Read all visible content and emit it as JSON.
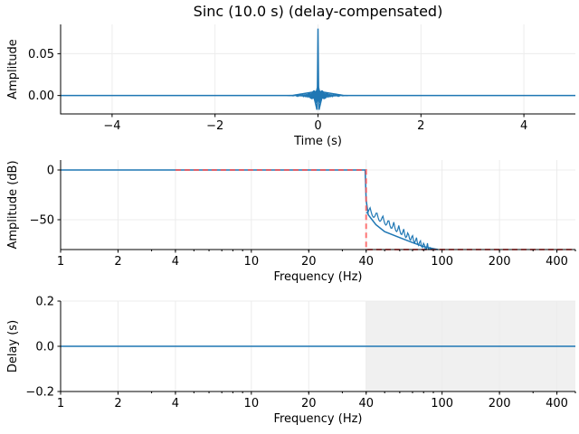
{
  "figure": {
    "title": "Sinc (10.0 s) (delay-compensated)",
    "colors": {
      "line": "#1f77b4",
      "ideal": "#ff5555",
      "grid": "#ececec",
      "shade": "#f0f0f0",
      "axis": "#000000"
    }
  },
  "chart_data": [
    {
      "type": "line",
      "title": "Sinc (10.0 s) (delay-compensated)",
      "xlabel": "Time (s)",
      "ylabel": "Amplitude",
      "xlim": [
        -5,
        5
      ],
      "ylim": [
        -0.022,
        0.085
      ],
      "xticks": [
        -4,
        -2,
        0,
        2,
        4
      ],
      "xtick_labels": [
        "−4",
        "−2",
        "0",
        "2",
        "4"
      ],
      "yticks": [
        0.0,
        0.05
      ],
      "ytick_labels": [
        "0.00",
        "0.05"
      ],
      "grid": true,
      "series": [
        {
          "name": "impulse response",
          "description": "sinc kernel centered at t=0, peak ~0.08, small ringing between ~-0.017 and ~0.012 near 0, otherwise 0",
          "x": [
            -5,
            -0.5,
            -0.1,
            -0.02,
            -0.01,
            0,
            0.01,
            0.02,
            0.1,
            0.5,
            5
          ],
          "y": [
            0,
            0,
            0.004,
            -0.017,
            0.012,
            0.08,
            0.012,
            -0.017,
            0.004,
            0,
            0
          ]
        }
      ]
    },
    {
      "type": "line",
      "xlabel": "Frequency (Hz)",
      "ylabel": "Amplitude (dB)",
      "xscale": "log",
      "xlim": [
        1,
        500
      ],
      "ylim": [
        -80,
        10
      ],
      "xticks": [
        1,
        2,
        4,
        10,
        20,
        40,
        100,
        200,
        400
      ],
      "xtick_labels": [
        "1",
        "2",
        "4",
        "10",
        "20",
        "40",
        "100",
        "200",
        "400"
      ],
      "yticks": [
        0,
        -50
      ],
      "ytick_labels": [
        "0",
        "−50"
      ],
      "grid": true,
      "series": [
        {
          "name": "actual response",
          "x": [
            1,
            39.5,
            40,
            41,
            45,
            50,
            60,
            70,
            80,
            95
          ],
          "y": [
            0,
            0,
            -30,
            -45,
            -55,
            -62,
            -68,
            -73,
            -77,
            -80
          ]
        },
        {
          "name": "ideal (dashed)",
          "style": "dashed",
          "x": [
            4,
            40,
            40,
            500
          ],
          "y": [
            0,
            0,
            -80,
            -80
          ]
        }
      ]
    },
    {
      "type": "line",
      "xlabel": "Frequency (Hz)",
      "ylabel": "Delay (s)",
      "xscale": "log",
      "xlim": [
        1,
        500
      ],
      "ylim": [
        -0.2,
        0.2
      ],
      "xticks": [
        1,
        2,
        4,
        10,
        20,
        40,
        100,
        200,
        400
      ],
      "xtick_labels": [
        "1",
        "2",
        "4",
        "10",
        "20",
        "40",
        "100",
        "200",
        "400"
      ],
      "yticks": [
        -0.2,
        0.0,
        0.2
      ],
      "ytick_labels": [
        "−0.2",
        "0.0",
        "0.2"
      ],
      "grid": true,
      "shaded_region": {
        "x": [
          40,
          500
        ],
        "description": "stopband shading"
      },
      "series": [
        {
          "name": "group delay",
          "x": [
            1,
            500
          ],
          "y": [
            0,
            0
          ]
        }
      ]
    }
  ]
}
